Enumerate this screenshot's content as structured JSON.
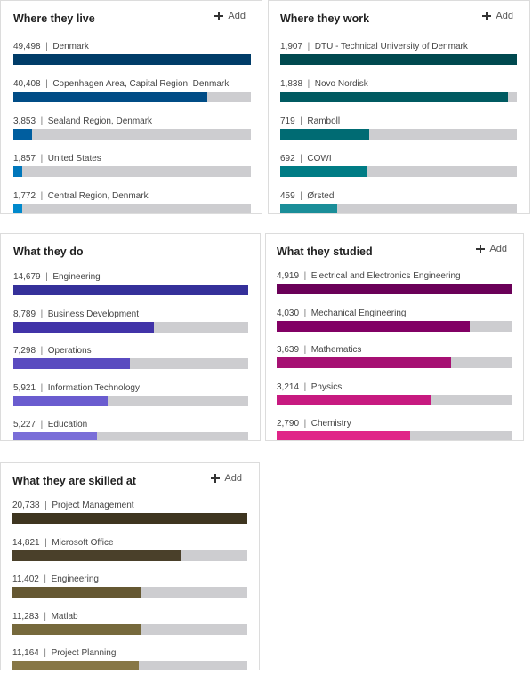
{
  "chart_data": [
    {
      "type": "bar",
      "title": "Where they live",
      "action_label": "Add",
      "categories": [
        "Denmark",
        "Copenhagen Area, Capital Region, Denmark",
        "Sealand Region, Denmark",
        "United States",
        "Central Region, Denmark"
      ],
      "values": [
        49498,
        40408,
        3853,
        1857,
        1772
      ],
      "value_labels": [
        "49,498",
        "40,408",
        "3,853",
        "1,857",
        "1,772"
      ],
      "colors": [
        "#003c68",
        "#004c86",
        "#005e9f",
        "#0077bb",
        "#0089cc"
      ]
    },
    {
      "type": "bar",
      "title": "Where they work",
      "action_label": "Add",
      "categories": [
        "DTU - Technical University of Denmark",
        "Novo Nordisk",
        "Ramboll",
        "COWI",
        "Ørsted"
      ],
      "values": [
        1907,
        1838,
        719,
        692,
        459
      ],
      "value_labels": [
        "1,907",
        "1,838",
        "719",
        "692",
        "459"
      ],
      "colors": [
        "#00494f",
        "#005a61",
        "#006b73",
        "#007c85",
        "#1a8e99"
      ]
    },
    {
      "type": "bar",
      "title": "What they do",
      "categories": [
        "Engineering",
        "Business Development",
        "Operations",
        "Information Technology",
        "Education"
      ],
      "values": [
        14679,
        8789,
        7298,
        5921,
        5227
      ],
      "value_labels": [
        "14,679",
        "8,789",
        "7,298",
        "5,921",
        "5,227"
      ],
      "colors": [
        "#35309a",
        "#4133a8",
        "#5a4bc0",
        "#6a5ccf",
        "#7a6ed8"
      ]
    },
    {
      "type": "bar",
      "title": "What they studied",
      "action_label": "Add",
      "categories": [
        "Electrical and Electronics Engineering",
        "Mechanical Engineering",
        "Mathematics",
        "Physics",
        "Chemistry"
      ],
      "values": [
        4919,
        4030,
        3639,
        3214,
        2790
      ],
      "value_labels": [
        "4,919",
        "4,030",
        "3,639",
        "3,214",
        "2,790"
      ],
      "colors": [
        "#6a0058",
        "#820064",
        "#a61073",
        "#c71a80",
        "#e02588"
      ]
    },
    {
      "type": "bar",
      "title": "What they are skilled at",
      "action_label": "Add",
      "categories": [
        "Project Management",
        "Microsoft Office",
        "Engineering",
        "Matlab",
        "Project Planning"
      ],
      "values": [
        20738,
        14821,
        11402,
        11283,
        11164
      ],
      "value_labels": [
        "20,738",
        "14,821",
        "11,402",
        "11,283",
        "11,164"
      ],
      "colors": [
        "#3e3520",
        "#4a402a",
        "#655832",
        "#76693c",
        "#877746"
      ]
    }
  ],
  "track_color": "#cdcdd0"
}
